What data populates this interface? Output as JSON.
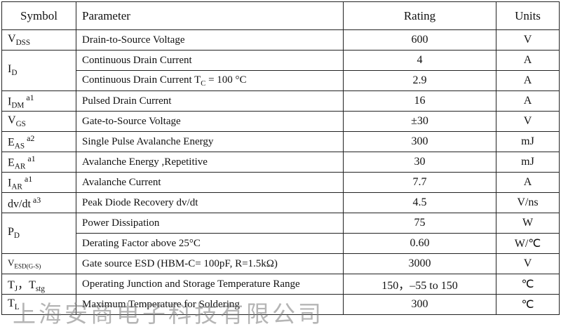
{
  "header": [
    "Symbol",
    "Parameter",
    "Rating",
    "Units"
  ],
  "rows": [
    {
      "symbol": [
        {
          "text": "V"
        },
        {
          "sub": "DSS"
        }
      ],
      "params": [
        {
          "parameter": [
            {
              "text": "Drain-to-Source Voltage"
            }
          ],
          "rating": "600",
          "units": "V"
        }
      ]
    },
    {
      "symbol": [
        {
          "text": "I"
        },
        {
          "sub": "D"
        }
      ],
      "params": [
        {
          "parameter": [
            {
              "text": "Continuous Drain Current"
            }
          ],
          "rating": "4",
          "units": "A"
        },
        {
          "parameter": [
            {
              "text": "Continuous Drain Current T"
            },
            {
              "sub": "C"
            },
            {
              "text": " = 100 °C"
            }
          ],
          "rating": "2.9",
          "units": "A"
        }
      ]
    },
    {
      "symbol": [
        {
          "text": "I"
        },
        {
          "sub": "DM"
        },
        {
          "sup": "a1"
        }
      ],
      "params": [
        {
          "parameter": [
            {
              "text": "Pulsed Drain Current"
            }
          ],
          "rating": "16",
          "units": "A"
        }
      ]
    },
    {
      "symbol": [
        {
          "text": "V"
        },
        {
          "sub": "GS"
        }
      ],
      "params": [
        {
          "parameter": [
            {
              "text": "Gate-to-Source Voltage"
            }
          ],
          "rating": "±30",
          "units": "V"
        }
      ]
    },
    {
      "symbol": [
        {
          "text": "E"
        },
        {
          "sub": "AS"
        },
        {
          "sup": "a2"
        }
      ],
      "params": [
        {
          "parameter": [
            {
              "text": "Single Pulse Avalanche Energy"
            }
          ],
          "rating": "300",
          "units": "mJ"
        }
      ]
    },
    {
      "symbol": [
        {
          "text": "E"
        },
        {
          "sub": "AR"
        },
        {
          "sup": "a1"
        }
      ],
      "params": [
        {
          "parameter": [
            {
              "text": "Avalanche Energy ,Repetitive"
            }
          ],
          "rating": "30",
          "units": "mJ"
        }
      ]
    },
    {
      "symbol": [
        {
          "text": "I"
        },
        {
          "sub": "AR"
        },
        {
          "sup": "a1"
        }
      ],
      "params": [
        {
          "parameter": [
            {
              "text": "Avalanche Current"
            }
          ],
          "rating": "7.7",
          "units": "A"
        }
      ]
    },
    {
      "symbol": [
        {
          "text": "dv/dt"
        },
        {
          "sup": "a3"
        }
      ],
      "params": [
        {
          "parameter": [
            {
              "text": "Peak Diode Recovery dv/dt"
            }
          ],
          "rating": "4.5",
          "units": "V/ns"
        }
      ]
    },
    {
      "symbol": [
        {
          "text": "P"
        },
        {
          "sub": "D"
        }
      ],
      "params": [
        {
          "parameter": [
            {
              "text": "Power Dissipation"
            }
          ],
          "rating": "75",
          "units": "W"
        },
        {
          "parameter": [
            {
              "text": "Derating Factor above 25°C"
            }
          ],
          "rating": "0.60",
          "units": "W/℃"
        }
      ]
    },
    {
      "symbol": [
        {
          "text": "V"
        },
        {
          "sub": "ESD(G-S)"
        }
      ],
      "small": true,
      "params": [
        {
          "parameter": [
            {
              "text": "Gate source ESD (HBM-C= 100pF, R=1.5kΩ)"
            }
          ],
          "rating": "3000",
          "units": "V"
        }
      ]
    },
    {
      "symbol": [
        {
          "text": "T"
        },
        {
          "sub": "J"
        },
        {
          "text": "，T"
        },
        {
          "sub": "stg"
        }
      ],
      "params": [
        {
          "parameter": [
            {
              "text": "Operating Junction and Storage Temperature Range"
            }
          ],
          "rating": "150，–55 to 150",
          "units": "℃"
        }
      ]
    },
    {
      "symbol": [
        {
          "text": "T"
        },
        {
          "sub": "L"
        }
      ],
      "params": [
        {
          "parameter": [
            {
              "text": "Maximum Temperature for Soldering"
            }
          ],
          "rating": "300",
          "units": "℃"
        }
      ]
    }
  ],
  "watermark": "上海安商电子科技有限公司"
}
